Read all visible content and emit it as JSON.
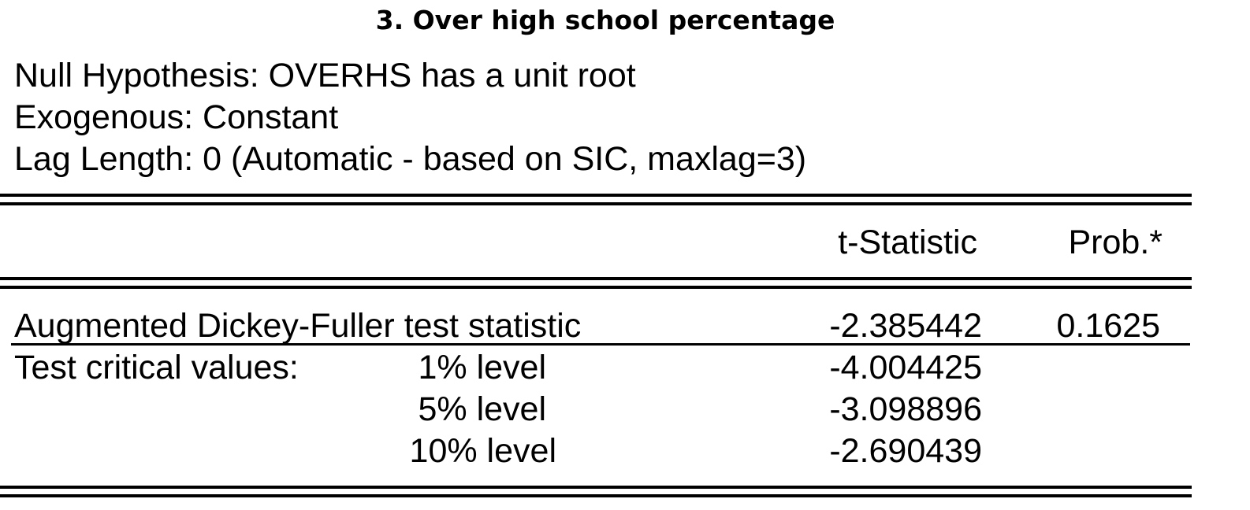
{
  "title": "3. Over high school percentage",
  "header": {
    "null_hypothesis": "Null Hypothesis: OVERHS has a unit root",
    "exogenous": "Exogenous: Constant",
    "lag_length": "Lag Length: 0 (Automatic - based on SIC, maxlag=3)"
  },
  "table": {
    "columns": [
      "t-Statistic",
      "Prob.*"
    ],
    "adf": {
      "label": "Augmented Dickey-Fuller test statistic",
      "t_statistic": "-2.385442",
      "prob": "0.1625"
    },
    "critical": {
      "label": "Test critical values:",
      "rows": [
        {
          "level": "1% level",
          "value": "-4.004425"
        },
        {
          "level": "5% level",
          "value": "-3.098896"
        },
        {
          "level": "10% level",
          "value": "-2.690439"
        }
      ]
    }
  }
}
